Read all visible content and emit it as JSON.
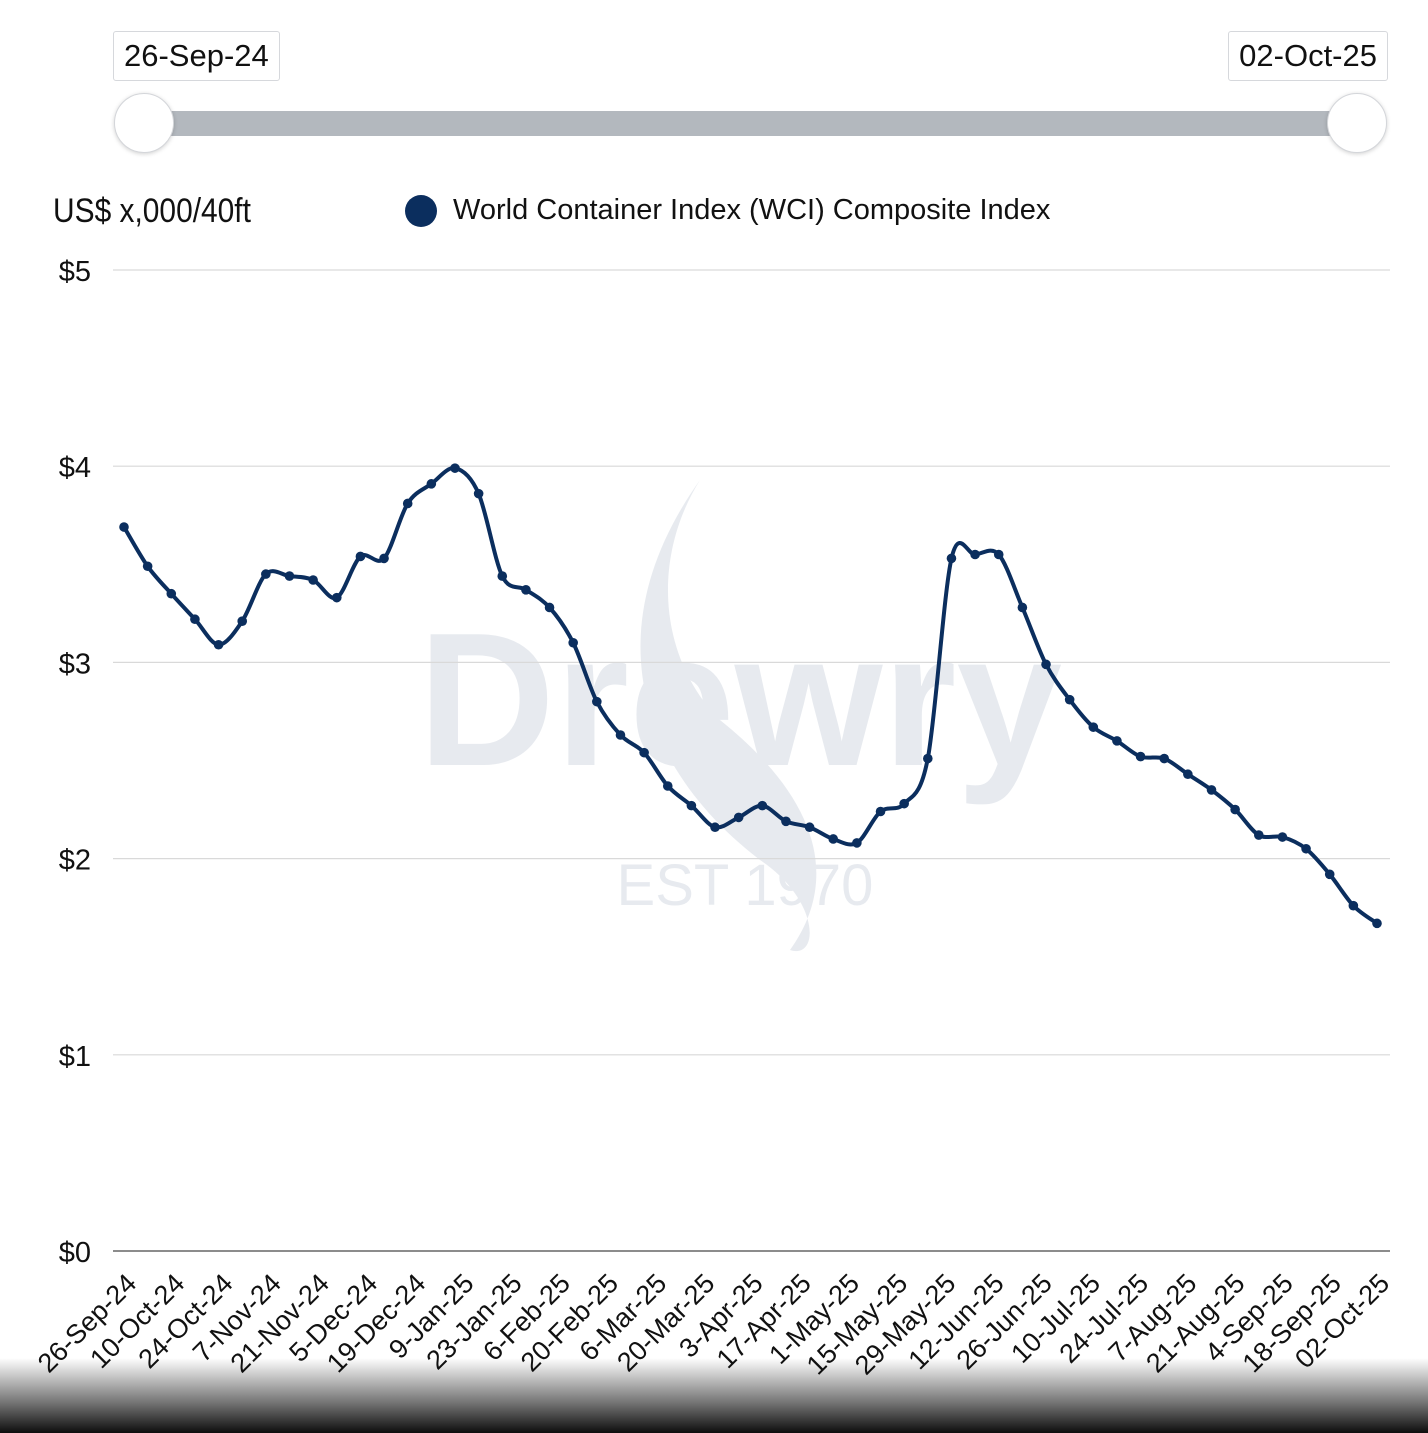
{
  "range_selector": {
    "start_label": "26-Sep-24",
    "end_label": "02-Oct-25"
  },
  "watermark": {
    "brand": "Drewry",
    "tagline": "EST 1970"
  },
  "colors": {
    "series": "#0b2e5e",
    "grid": "#d9d9d9",
    "axis": "#8c8c8c"
  },
  "chart_data": {
    "type": "line",
    "title": "",
    "ylabel": "US$ x,000/40ft",
    "xlabel": "",
    "ylim": [
      0,
      5
    ],
    "y_ticks": [
      0,
      1,
      2,
      3,
      4,
      5
    ],
    "y_tick_labels": [
      "$0",
      "$1",
      "$2",
      "$3",
      "$4",
      "$5"
    ],
    "grid": true,
    "legend_position": "top",
    "x_tick_labels": [
      "26-Sep-24",
      "10-Oct-24",
      "24-Oct-24",
      "7-Nov-24",
      "21-Nov-24",
      "5-Dec-24",
      "19-Dec-24",
      "9-Jan-25",
      "23-Jan-25",
      "6-Feb-25",
      "20-Feb-25",
      "6-Mar-25",
      "20-Mar-25",
      "3-Apr-25",
      "17-Apr-25",
      "1-May-25",
      "15-May-25",
      "29-May-25",
      "12-Jun-25",
      "26-Jun-25",
      "10-Jul-25",
      "24-Jul-25",
      "7-Aug-25",
      "21-Aug-25",
      "4-Sep-25",
      "18-Sep-25",
      "02-Oct-25"
    ],
    "series": [
      {
        "name": "World Container Index (WCI) Composite Index",
        "values": [
          3.69,
          3.49,
          3.35,
          3.22,
          3.09,
          3.21,
          3.45,
          3.44,
          3.42,
          3.33,
          3.54,
          3.53,
          3.81,
          3.91,
          3.99,
          3.86,
          3.44,
          3.37,
          3.28,
          3.1,
          2.8,
          2.63,
          2.54,
          2.37,
          2.27,
          2.16,
          2.21,
          2.27,
          2.19,
          2.16,
          2.1,
          2.08,
          2.24,
          2.28,
          2.51,
          3.53,
          3.55,
          3.55,
          3.28,
          2.99,
          2.81,
          2.67,
          2.6,
          2.52,
          2.51,
          2.43,
          2.35,
          2.25,
          2.12,
          2.11,
          2.05,
          1.92,
          1.76,
          1.67
        ]
      }
    ]
  }
}
